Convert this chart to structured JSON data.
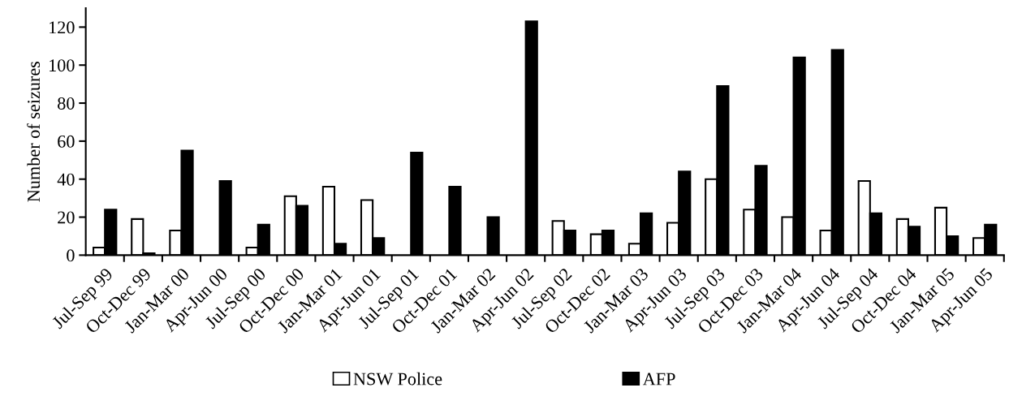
{
  "chart_data": {
    "type": "bar",
    "ylabel": "Number of seizures",
    "categories": [
      "Jul-Sep 99",
      "Oct-Dec 99",
      "Jan-Mar 00",
      "Apr-Jun 00",
      "Jul-Sep 00",
      "Oct-Dec 00",
      "Jan-Mar 01",
      "Apr-Jun 01",
      "Jul-Sep 01",
      "Oct-Dec 01",
      "Jan-Mar 02",
      "Apr-Jun 02",
      "Jul-Sep 02",
      "Oct-Dec 02",
      "Jan-Mar 03",
      "Apr-Jun 03",
      "Jul-Sep 03",
      "Oct-Dec 03",
      "Jan-Mar 04",
      "Apr-Jun 04",
      "Jul-Sep 04",
      "Oct-Dec 04",
      "Jan-Mar 05",
      "Apr-Jun 05"
    ],
    "series": [
      {
        "name": "NSW Police",
        "color": "#ffffff",
        "values": [
          4,
          19,
          13,
          null,
          4,
          31,
          36,
          29,
          null,
          null,
          null,
          null,
          18,
          11,
          6,
          17,
          40,
          24,
          20,
          13,
          39,
          19,
          25,
          9
        ]
      },
      {
        "name": "AFP",
        "color": "#000000",
        "values": [
          24,
          1,
          55,
          39,
          16,
          26,
          6,
          9,
          54,
          36,
          20,
          123,
          13,
          13,
          22,
          44,
          89,
          47,
          104,
          108,
          22,
          15,
          10,
          16
        ]
      }
    ],
    "ylim": [
      0,
      130
    ],
    "yticks": [
      0,
      20,
      40,
      60,
      80,
      100,
      120
    ],
    "grid": false,
    "legend": "bottom"
  }
}
